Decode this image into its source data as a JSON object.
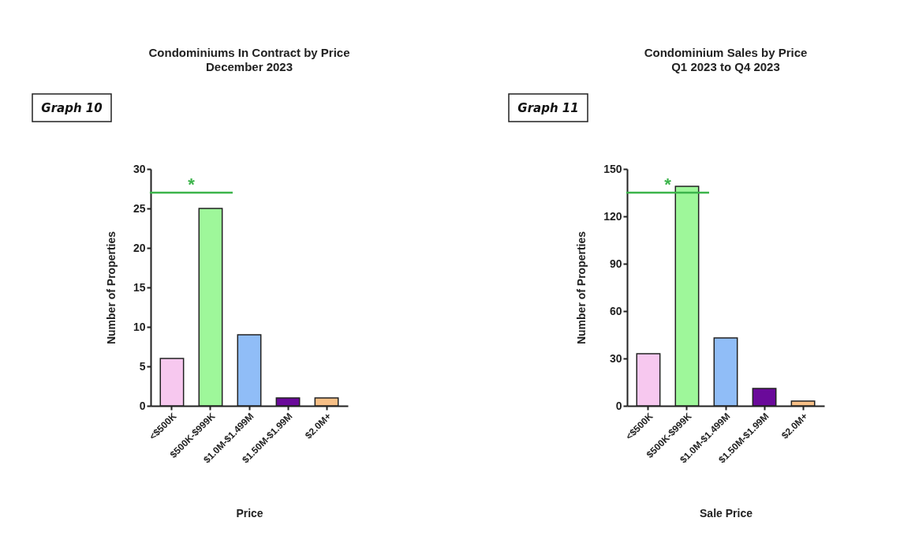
{
  "chart_data": [
    {
      "type": "bar",
      "title": "Condominiums In Contract by Price",
      "subtitle": "December 2023",
      "xlabel": "Price",
      "ylabel": "Number of Properties",
      "categories": [
        "<$500K",
        "$500K-$999K",
        "$1.0M-$1.499M",
        "$1.50M-$1.99M",
        "$2.0M+"
      ],
      "values": [
        6,
        25,
        9,
        1,
        1
      ],
      "colors": [
        "#f7c8ef",
        "#9ef79a",
        "#90bdf7",
        "#6a0a9a",
        "#f7bf86"
      ],
      "ylim": [
        0,
        30
      ],
      "yticks": [
        0,
        5,
        10,
        15,
        20,
        25,
        30
      ],
      "annotations": [
        "Graph 10",
        "*"
      ]
    },
    {
      "type": "bar",
      "title": "Condominium Sales by Price",
      "subtitle": "Q1 2023 to Q4 2023",
      "xlabel": "Sale Price",
      "ylabel": "Number of Properties",
      "categories": [
        "<$500K",
        "$500K-$999K",
        "$1.0M-$1.499M",
        "$1.50M-$1.99M",
        "$2.0M+"
      ],
      "values": [
        33,
        139,
        43,
        11,
        3
      ],
      "colors": [
        "#f7c8ef",
        "#9ef79a",
        "#90bdf7",
        "#6a0a9a",
        "#f7bf86"
      ],
      "ylim": [
        0,
        150
      ],
      "yticks": [
        0,
        30,
        60,
        90,
        120,
        150
      ],
      "annotations": [
        "Graph 11",
        "*"
      ]
    }
  ]
}
